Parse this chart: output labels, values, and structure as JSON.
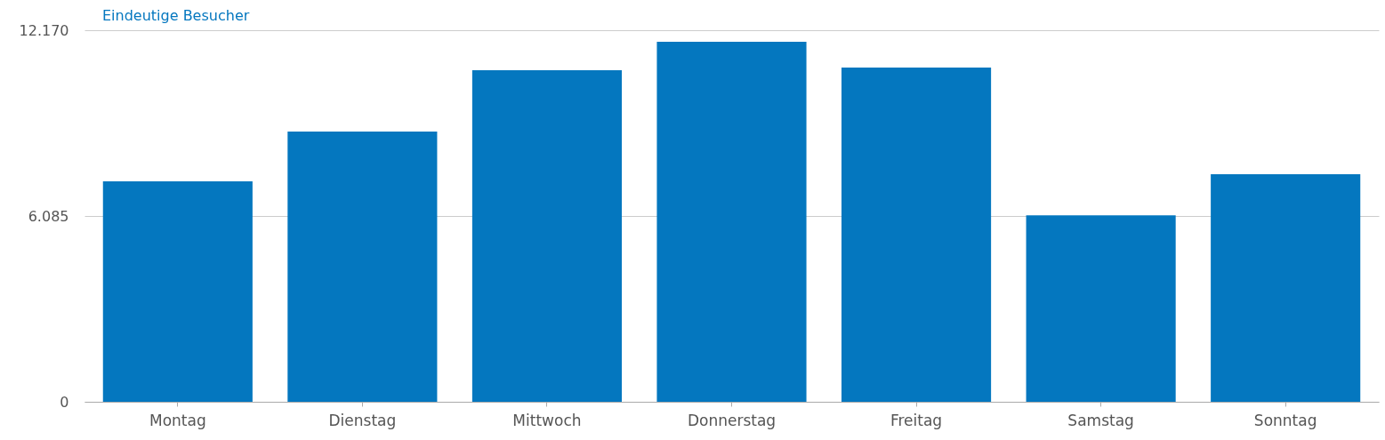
{
  "chart_data": {
    "type": "bar",
    "categories": [
      "Montag",
      "Dienstag",
      "Mittwoch",
      "Donnerstag",
      "Freitag",
      "Samstag",
      "Sonntag"
    ],
    "series": [
      {
        "name": "Eindeutige Besucher",
        "color": "#0477bf",
        "values": [
          7220,
          8850,
          10860,
          11790,
          10950,
          6110,
          7450
        ]
      }
    ],
    "ylim": [
      0,
      12170
    ],
    "yticks": [
      0,
      {
        "value": 6085,
        "label": "6.085"
      },
      {
        "value": 12170,
        "label": "12.170"
      }
    ],
    "grid": "y",
    "legend": "top left"
  }
}
